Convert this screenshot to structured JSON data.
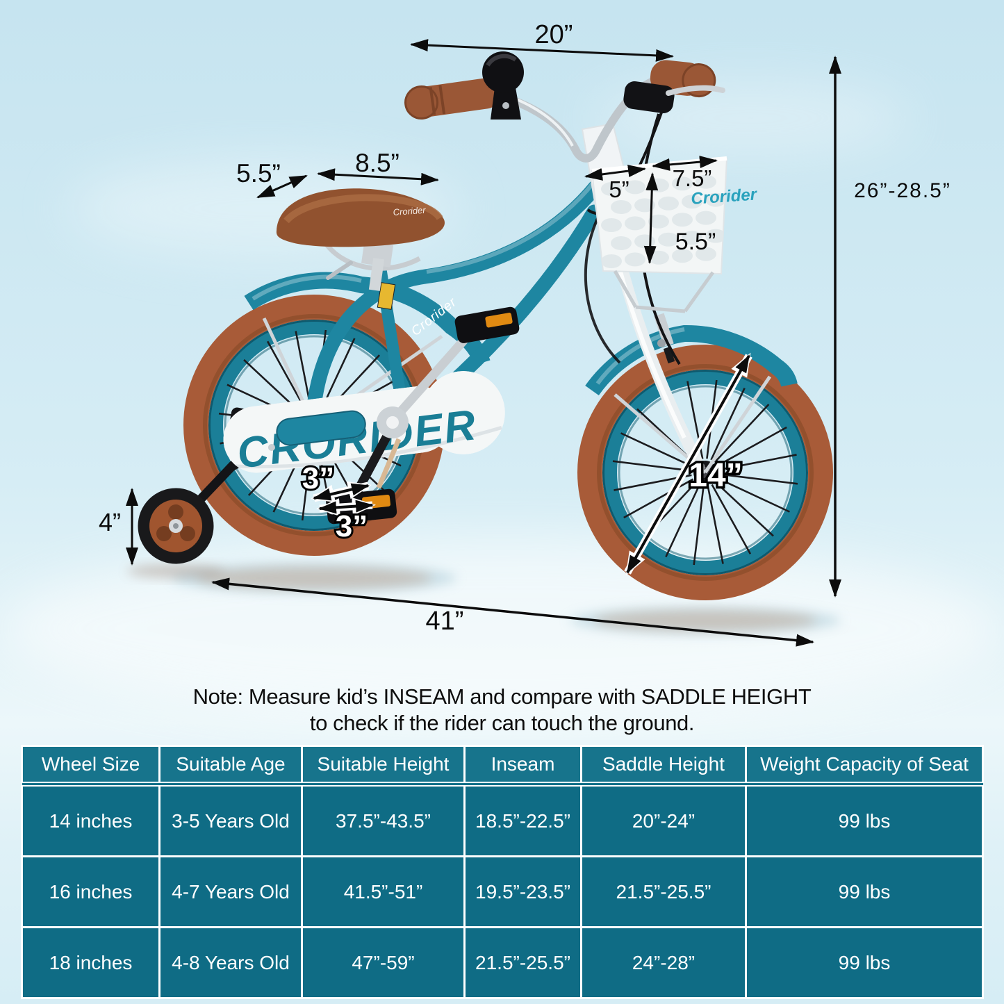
{
  "dimensions": {
    "handlebar_width": "20”",
    "saddle_width": "5.5”",
    "saddle_length": "8.5”",
    "basket_depth": "5”",
    "basket_width": "7.5”",
    "basket_height": "5.5”",
    "overall_height": "26”-28.5”",
    "training_wheel_height": "4”",
    "pedal_size_a": "3”",
    "pedal_size_b": "3”",
    "wheel_diameter": "14”",
    "overall_length": "41”"
  },
  "branding": {
    "frame_logo": "Crorider",
    "chainguard_logo": "CRORIDER",
    "basket_logo": "Crorider",
    "saddle_logo": "Crorider"
  },
  "note": {
    "line1": "Note: Measure kid’s INSEAM and compare with SADDLE HEIGHT",
    "line2": "to check if the rider can touch the ground."
  },
  "size_chart": {
    "headers": [
      "Wheel Size",
      "Suitable Age",
      "Suitable Height",
      "Inseam",
      "Saddle Height",
      "Weight Capacity of Seat"
    ],
    "rows": [
      [
        "14 inches",
        "3-5 Years Old",
        "37.5”-43.5”",
        "18.5”-22.5”",
        "20”-24”",
        "99 lbs"
      ],
      [
        "16 inches",
        "4-7 Years Old",
        "41.5”-51”",
        "19.5”-23.5”",
        "21.5”-25.5”",
        "99 lbs"
      ],
      [
        "18 inches",
        "4-8 Years Old",
        "47”-59”",
        "21.5”-25.5”",
        "24”-28”",
        "99 lbs"
      ]
    ]
  },
  "colors": {
    "frame_teal": "#1e86a1",
    "rim_teal": "#1b7f98",
    "tire_brown": "#a85b38",
    "table_header_teal": "#17748c",
    "table_cell_teal": "#0f6c85",
    "background_blue": "#cfe9f3"
  }
}
